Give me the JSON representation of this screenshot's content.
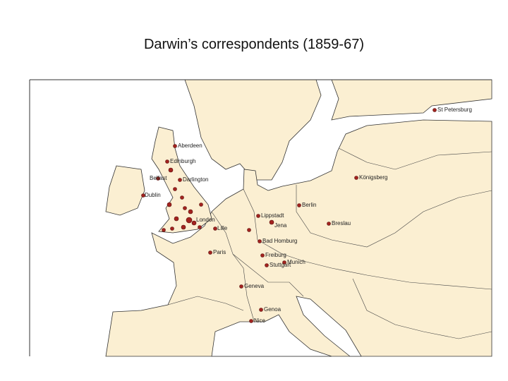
{
  "header": {
    "title": "Darwin’s correspondents (1859-67)"
  },
  "map": {
    "places": [
      "St Petersburg",
      "Aberdeen",
      "Edinburgh",
      "Belfast",
      "Darlington",
      "Dublin",
      "London",
      "Lille",
      "Königsberg",
      "Berlin",
      "Lippstadt",
      "Jena",
      "Breslau",
      "Bad Homburg",
      "Freiburg",
      "Stuttgart",
      "Munich",
      "Paris",
      "Geneva",
      "Genoa",
      "Nice"
    ]
  }
}
